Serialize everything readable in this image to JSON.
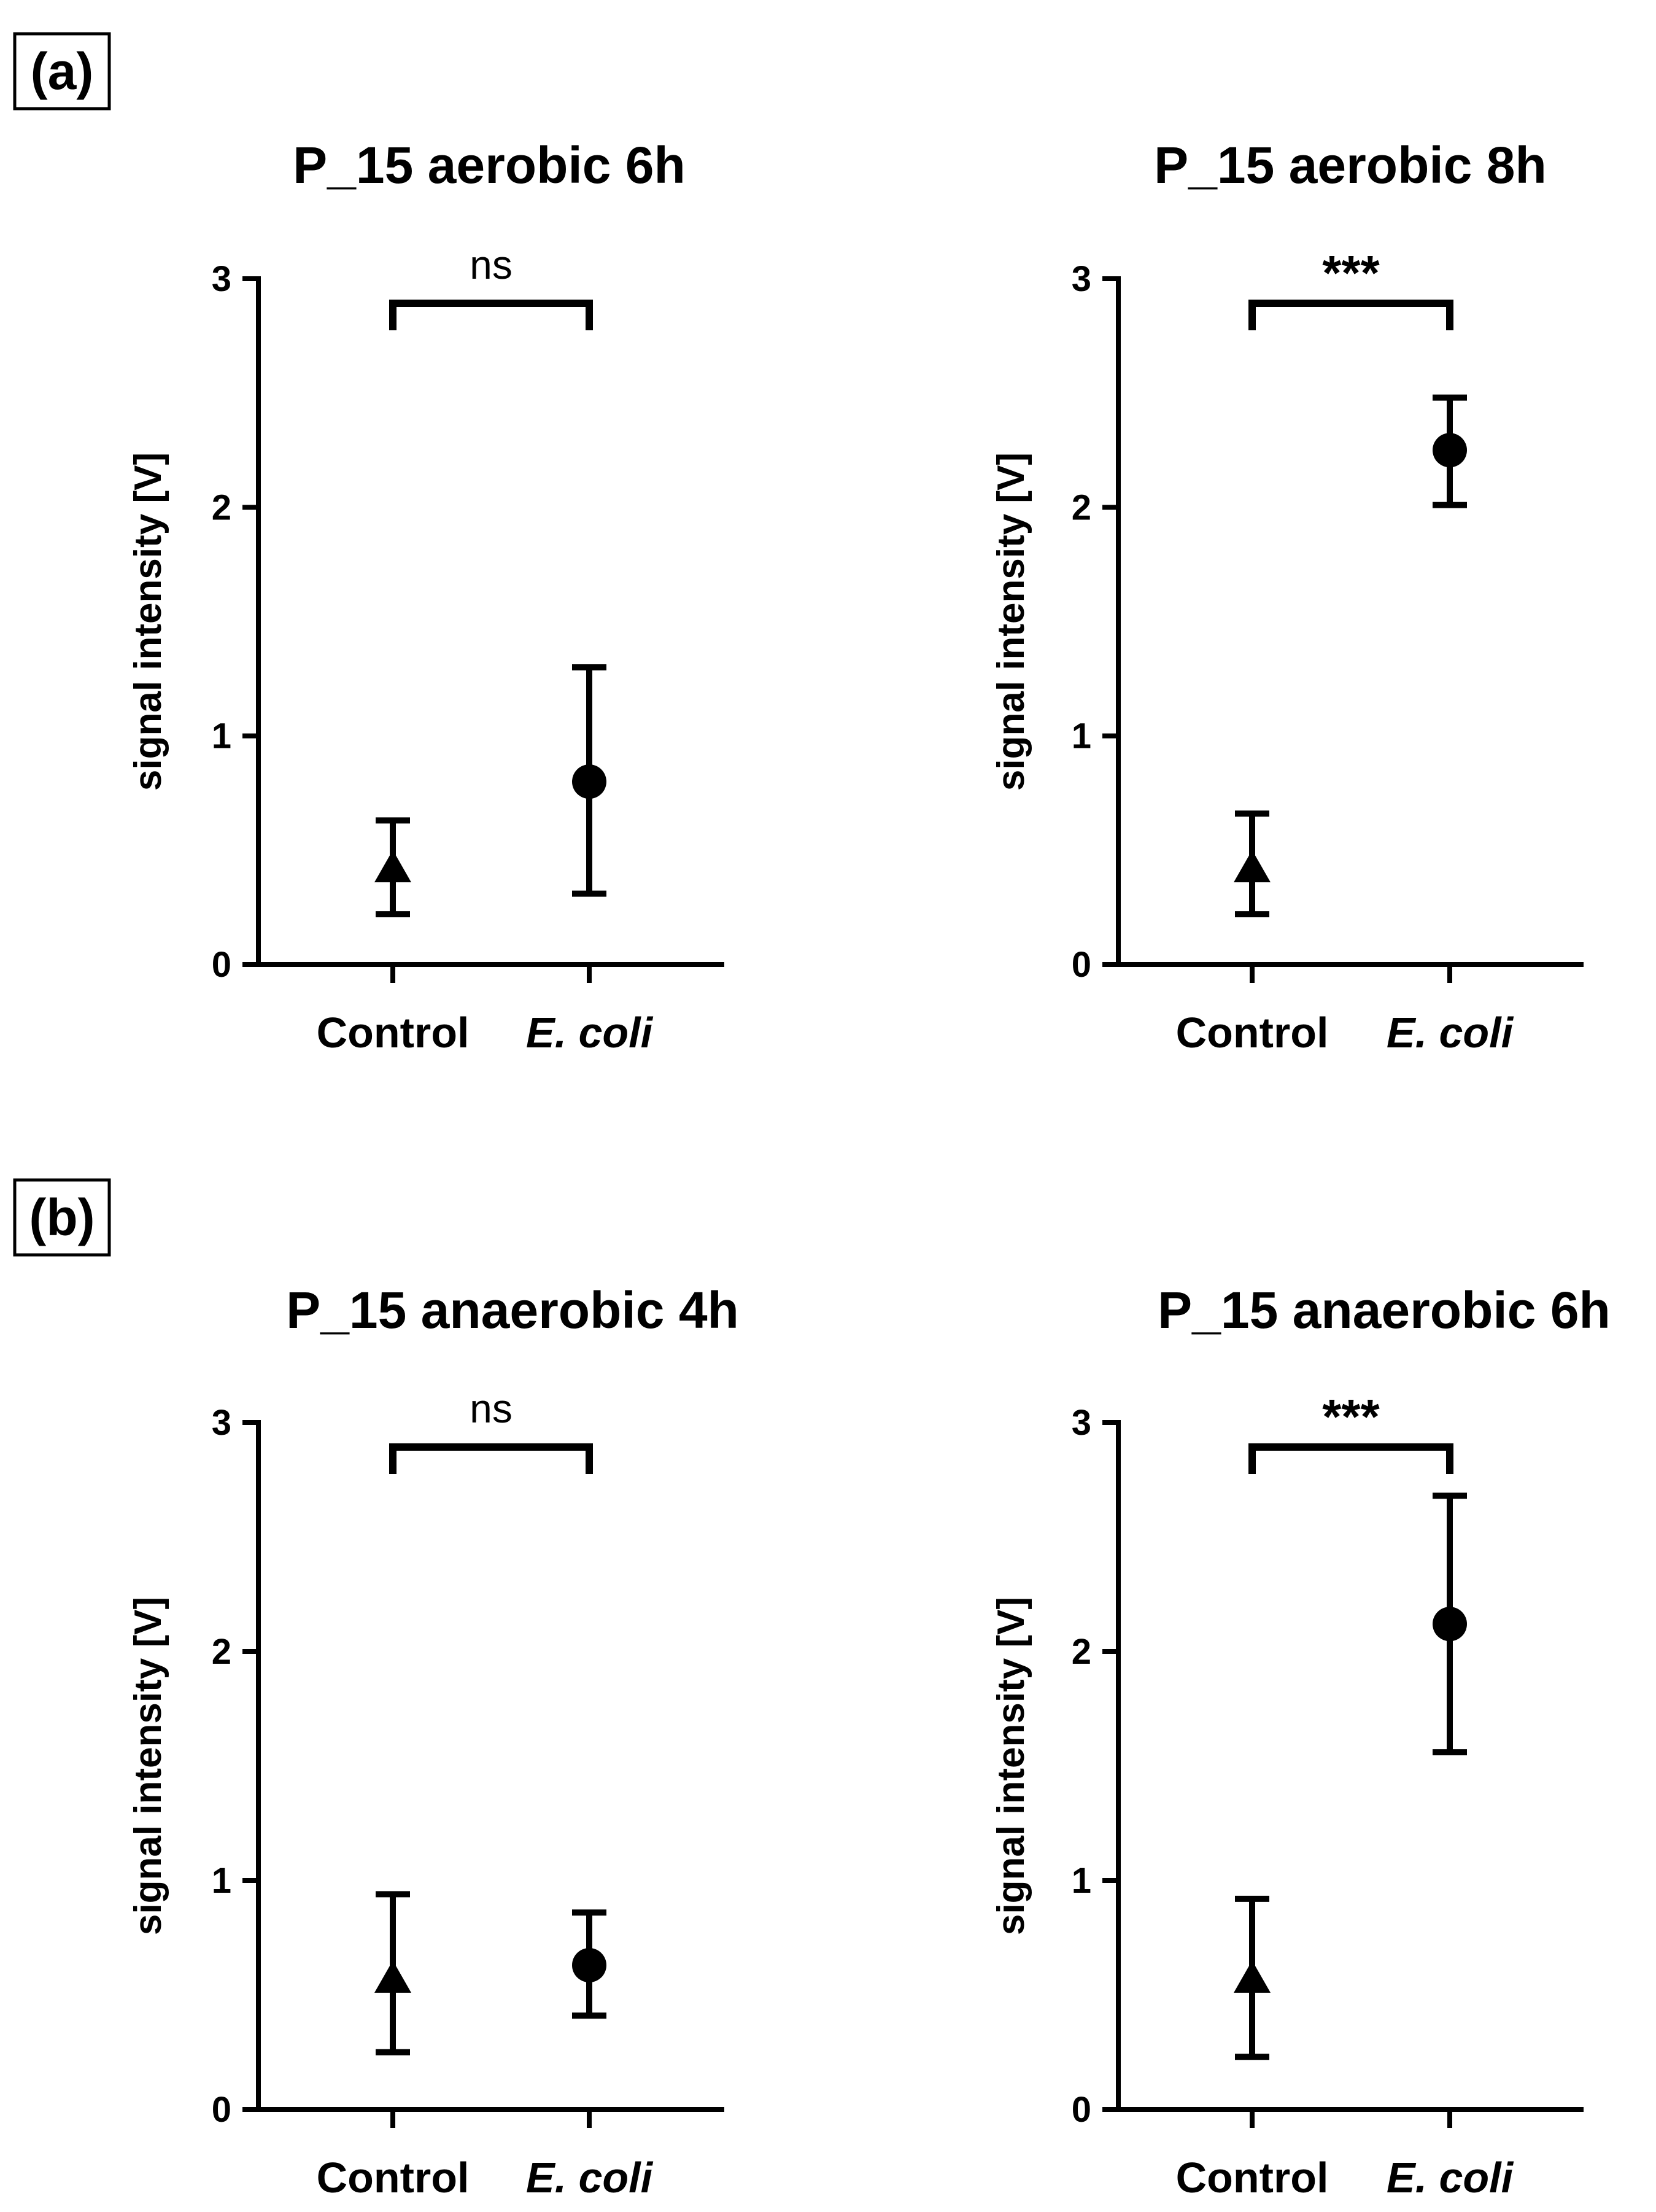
{
  "panels": [
    {
      "label": "(a)"
    },
    {
      "label": "(b)"
    }
  ],
  "chart_data": [
    {
      "type": "scatter",
      "title": "P_15 aerobic 6h",
      "panel": "(a)",
      "xlabel": "",
      "ylabel": "signal intensity [V]",
      "ylim": [
        0,
        3
      ],
      "yticks": [
        "0",
        "1",
        "2",
        "3"
      ],
      "categories": [
        "Control",
        "E. coli"
      ],
      "category_italic": [
        false,
        true
      ],
      "markers": [
        "triangle",
        "circle"
      ],
      "means": [
        0.42,
        0.8
      ],
      "err_low": [
        0.22,
        0.31
      ],
      "err_high": [
        0.63,
        1.3
      ],
      "significance": "ns"
    },
    {
      "type": "scatter",
      "title": "P_15 aerobic 8h",
      "panel": "(a)",
      "xlabel": "",
      "ylabel": "signal intensity [V]",
      "ylim": [
        0,
        3
      ],
      "yticks": [
        "0",
        "1",
        "2",
        "3"
      ],
      "categories": [
        "Control",
        "E. coli"
      ],
      "category_italic": [
        false,
        true
      ],
      "markers": [
        "triangle",
        "circle"
      ],
      "means": [
        0.42,
        2.25
      ],
      "err_low": [
        0.22,
        2.01
      ],
      "err_high": [
        0.66,
        2.48
      ],
      "significance": "***"
    },
    {
      "type": "scatter",
      "title": "P_15 anaerobic 4h",
      "panel": "(b)",
      "xlabel": "",
      "ylabel": "signal intensity [V]",
      "ylim": [
        0,
        3
      ],
      "yticks": [
        "0",
        "1",
        "2",
        "3"
      ],
      "categories": [
        "Control",
        "E. coli"
      ],
      "category_italic": [
        false,
        true
      ],
      "markers": [
        "triangle",
        "circle"
      ],
      "means": [
        0.57,
        0.63
      ],
      "err_low": [
        0.25,
        0.41
      ],
      "err_high": [
        0.94,
        0.86
      ],
      "significance": "ns"
    },
    {
      "type": "scatter",
      "title": "P_15 anaerobic 6h",
      "panel": "(b)",
      "xlabel": "",
      "ylabel": "signal intensity [V]",
      "ylim": [
        0,
        3
      ],
      "yticks": [
        "0",
        "1",
        "2",
        "3"
      ],
      "categories": [
        "Control",
        "E. coli"
      ],
      "category_italic": [
        false,
        true
      ],
      "markers": [
        "triangle",
        "circle"
      ],
      "means": [
        0.57,
        2.12
      ],
      "err_low": [
        0.23,
        1.56
      ],
      "err_high": [
        0.92,
        2.68
      ],
      "significance": "***"
    }
  ]
}
